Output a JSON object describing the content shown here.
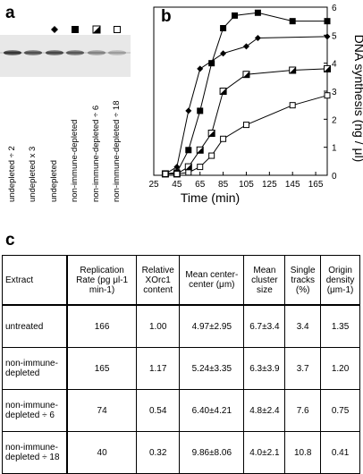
{
  "panel_labels": {
    "a": "a",
    "b": "b",
    "c": "c"
  },
  "blot": {
    "lane_labels": [
      "undepleted ÷ 2",
      "undepleted x 3",
      "undepleted",
      "non-immune-depleted",
      "non-immune-depleted ÷ 6",
      "non-immune-depleted ÷ 18"
    ],
    "lane_markers": [
      "",
      "",
      "diamond",
      "filled-square",
      "half-filled-square",
      "open-square"
    ]
  },
  "chart_data": {
    "type": "line",
    "xlabel": "Time (min)",
    "ylabel": "DNA synthesis (ng / μl)",
    "xlim": [
      25,
      175
    ],
    "ylim": [
      0,
      6
    ],
    "xticks": [
      25,
      45,
      65,
      85,
      105,
      125,
      145,
      165
    ],
    "yticks": [
      0,
      1,
      2,
      3,
      4,
      5,
      6
    ],
    "series": [
      {
        "marker": "diamond",
        "x": [
          35,
          45,
          55,
          65,
          85,
          105,
          115,
          175
        ],
        "y": [
          0.05,
          0.3,
          2.3,
          3.8,
          4.35,
          4.6,
          4.9,
          4.95
        ]
      },
      {
        "marker": "filled-square",
        "x": [
          35,
          45,
          55,
          65,
          75,
          85,
          95,
          115,
          145,
          175
        ],
        "y": [
          0.05,
          0.1,
          0.9,
          2.3,
          4.0,
          5.25,
          5.7,
          5.8,
          5.5,
          5.5
        ]
      },
      {
        "marker": "half-filled-square",
        "x": [
          35,
          45,
          55,
          65,
          75,
          85,
          105,
          145,
          175
        ],
        "y": [
          0.05,
          0.05,
          0.3,
          0.9,
          1.5,
          3.0,
          3.6,
          3.75,
          3.8
        ]
      },
      {
        "marker": "open-square",
        "x": [
          35,
          45,
          55,
          65,
          75,
          85,
          105,
          145,
          175
        ],
        "y": [
          0.05,
          0.05,
          0.1,
          0.3,
          0.7,
          1.3,
          1.8,
          2.5,
          2.85
        ]
      }
    ]
  },
  "table": {
    "headers": [
      "Extract",
      "Replication Rate (pg μl-1 min-1)",
      "Relative XOrc1 content",
      "Mean center-center (μm)",
      "Mean cluster size",
      "Single tracks (%)",
      "Origin density (μm-1)"
    ],
    "rows": [
      [
        "untreated",
        "166",
        "1.00",
        "4.97±2.95",
        "6.7±3.4",
        "3.4",
        "1.35"
      ],
      [
        "non-immune-depleted",
        "165",
        "1.17",
        "5.24±3.35",
        "6.3±3.9",
        "3.7",
        "1.20"
      ],
      [
        "non-immune-depleted ÷ 6",
        "74",
        "0.54",
        "6.40±4.21",
        "4.8±2.4",
        "7.6",
        "0.75"
      ],
      [
        "non-immune-depleted ÷ 18",
        "40",
        "0.32",
        "9.86±8.06",
        "4.0±2.1",
        "10.8",
        "0.41"
      ]
    ]
  }
}
